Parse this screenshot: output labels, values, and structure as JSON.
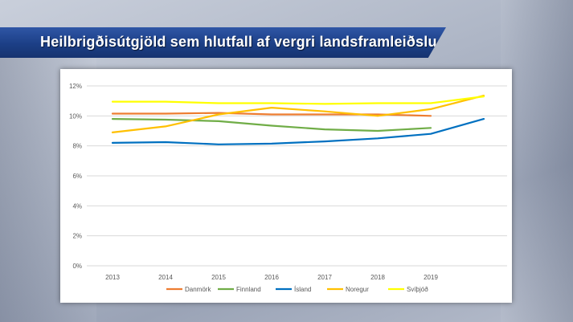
{
  "title": "Heilbrigðisútgjöld sem hlutfall af vergri landsframleiðslu",
  "chart_data": {
    "type": "line",
    "title": "",
    "xlabel": "",
    "ylabel": "",
    "x": [
      "2013",
      "2014",
      "2015",
      "2016",
      "2017",
      "2018",
      "2019",
      ""
    ],
    "x_tick_labels": [
      "2013",
      "2014",
      "2015",
      "2016",
      "2017",
      "2018",
      "2019"
    ],
    "y_tick_labels": [
      "0%",
      "2%",
      "4%",
      "6%",
      "8%",
      "10%",
      "12%"
    ],
    "ylim": [
      0,
      12
    ],
    "grid": "horizontal",
    "legend_position": "bottom",
    "series": [
      {
        "name": "Danmörk",
        "color": "#ED7D31",
        "values": [
          10.15,
          10.15,
          10.2,
          10.1,
          10.1,
          10.1,
          10.0,
          null
        ]
      },
      {
        "name": "Finnland",
        "color": "#70AD47",
        "values": [
          9.8,
          9.75,
          9.65,
          9.35,
          9.1,
          9.0,
          9.2,
          null
        ]
      },
      {
        "name": "Ísland",
        "color": "#0070C0",
        "values": [
          8.2,
          8.25,
          8.1,
          8.15,
          8.3,
          8.5,
          8.8,
          9.8
        ]
      },
      {
        "name": "Noregur",
        "color": "#FFC000",
        "values": [
          8.9,
          9.3,
          10.1,
          10.55,
          10.3,
          10.0,
          10.45,
          11.35
        ]
      },
      {
        "name": "Svíþjóð",
        "color": "#FFFF00",
        "values": [
          10.95,
          10.95,
          10.85,
          10.85,
          10.8,
          10.85,
          10.85,
          11.3
        ]
      }
    ]
  }
}
